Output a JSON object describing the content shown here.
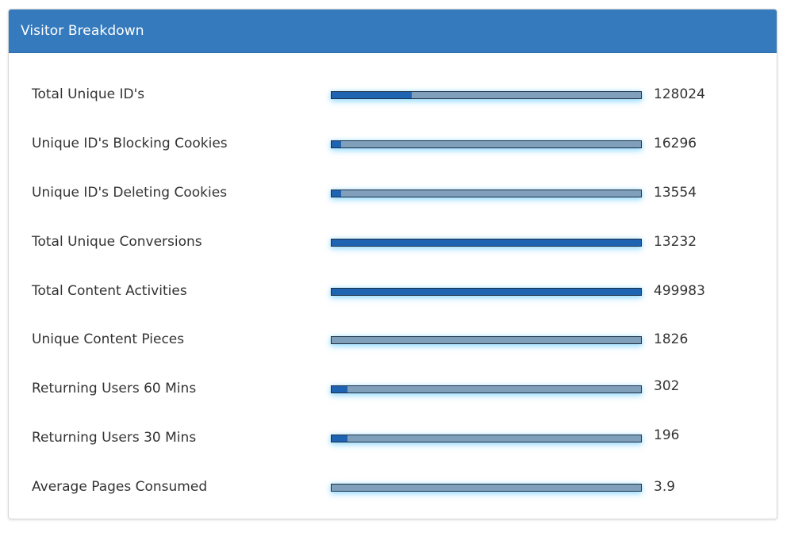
{
  "panel": {
    "title": "Visitor Breakdown"
  },
  "rows": [
    {
      "label": "Total Unique ID's",
      "value": "128024",
      "fill_percent": 26
    },
    {
      "label": "Unique ID's Blocking Cookies",
      "value": "16296",
      "fill_percent": 3
    },
    {
      "label": "Unique ID's Deleting Cookies",
      "value": "13554",
      "fill_percent": 3
    },
    {
      "label": "Total Unique Conversions",
      "value": "13232",
      "fill_percent": 100
    },
    {
      "label": "Total Content Activities",
      "value": "499983",
      "fill_percent": 100
    },
    {
      "label": "Unique Content Pieces",
      "value": "1826",
      "fill_percent": 0
    },
    {
      "label": "Returning Users 60 Mins",
      "value": "302",
      "fill_percent": 5
    },
    {
      "label": "Returning Users 30 Mins",
      "value": "196",
      "fill_percent": 5
    },
    {
      "label": "Average Pages Consumed",
      "value": "3.9",
      "fill_percent": 0
    }
  ],
  "colors": {
    "header": "#357abd",
    "bar_fill": "#1f63b3",
    "bar_track": "#7f9fbb",
    "bar_glow": "#5ac8ff"
  }
}
